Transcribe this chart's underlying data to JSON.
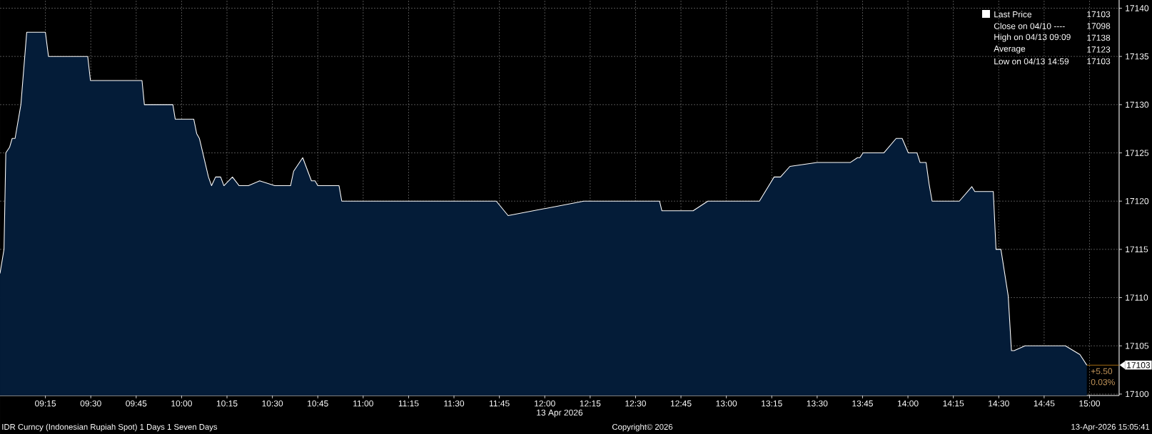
{
  "chart_data": {
    "type": "area",
    "xlabel": "13 Apr 2026",
    "x": [
      9.0,
      9.022,
      9.032,
      9.053,
      9.067,
      9.083,
      9.115,
      9.147,
      9.25,
      9.267,
      9.483,
      9.498,
      9.782,
      9.795,
      9.952,
      9.965,
      10.067,
      10.083,
      10.098,
      10.148,
      10.165,
      10.187,
      10.215,
      10.233,
      10.28,
      10.317,
      10.368,
      10.43,
      10.513,
      10.6,
      10.617,
      10.667,
      10.715,
      10.735,
      10.75,
      10.867,
      10.882,
      11.733,
      11.798,
      12.215,
      12.632,
      12.645,
      12.817,
      12.898,
      13.182,
      13.263,
      13.298,
      13.35,
      13.5,
      13.682,
      13.722,
      13.735,
      13.753,
      13.867,
      13.935,
      13.968,
      14.002,
      14.05,
      14.067,
      14.1,
      14.117,
      14.133,
      14.283,
      14.352,
      14.368,
      14.47,
      14.485,
      14.512,
      14.552,
      14.57,
      14.585,
      14.645,
      14.867,
      14.947,
      14.985
    ],
    "series": [
      {
        "name": "Last Price",
        "color": "#041c38",
        "values": [
          17112.5,
          17115,
          17125,
          17125.6,
          17126.5,
          17126.5,
          17130,
          17137.5,
          17137.5,
          17135,
          17135,
          17132.5,
          17132.5,
          17130,
          17130,
          17128.5,
          17128.5,
          17127,
          17126.5,
          17122.5,
          17121.6,
          17122.5,
          17122.5,
          17121.6,
          17122.5,
          17121.6,
          17121.6,
          17122.1,
          17121.6,
          17121.6,
          17123.1,
          17124.5,
          17122.1,
          17122.1,
          17121.6,
          17121.6,
          17120,
          17120,
          17118.5,
          17120,
          17120,
          17119,
          17119,
          17120,
          17120,
          17122.5,
          17122.5,
          17123.6,
          17124,
          17124,
          17124.5,
          17124.5,
          17125,
          17125,
          17126.5,
          17126.5,
          17125,
          17125,
          17124,
          17124,
          17121.7,
          17120,
          17120,
          17121.5,
          17121,
          17121,
          17115,
          17115,
          17110.2,
          17104.5,
          17104.5,
          17105,
          17105,
          17104.1,
          17103
        ]
      }
    ],
    "xlim": [
      9.0,
      15.163
    ],
    "ylim": [
      17099.85,
      17140.85
    ],
    "xticks": [
      {
        "value": 9.25,
        "label": "09:15"
      },
      {
        "value": 9.5,
        "label": "09:30"
      },
      {
        "value": 9.75,
        "label": "09:45"
      },
      {
        "value": 10.0,
        "label": "10:00"
      },
      {
        "value": 10.25,
        "label": "10:15"
      },
      {
        "value": 10.5,
        "label": "10:30"
      },
      {
        "value": 10.75,
        "label": "10:45"
      },
      {
        "value": 11.0,
        "label": "11:00"
      },
      {
        "value": 11.25,
        "label": "11:15"
      },
      {
        "value": 11.5,
        "label": "11:30"
      },
      {
        "value": 11.75,
        "label": "11:45"
      },
      {
        "value": 12.0,
        "label": "12:00"
      },
      {
        "value": 12.25,
        "label": "12:15"
      },
      {
        "value": 12.5,
        "label": "12:30"
      },
      {
        "value": 12.75,
        "label": "12:45"
      },
      {
        "value": 13.0,
        "label": "13:00"
      },
      {
        "value": 13.25,
        "label": "13:15"
      },
      {
        "value": 13.5,
        "label": "13:30"
      },
      {
        "value": 13.75,
        "label": "13:45"
      },
      {
        "value": 14.0,
        "label": "14:00"
      },
      {
        "value": 14.25,
        "label": "14:15"
      },
      {
        "value": 14.5,
        "label": "14:30"
      },
      {
        "value": 14.75,
        "label": "14:45"
      },
      {
        "value": 15.0,
        "label": "15:00"
      }
    ],
    "yticks": [
      17100,
      17105,
      17110,
      17115,
      17120,
      17125,
      17130,
      17135,
      17140
    ],
    "grid": true,
    "legend": "top right",
    "annotations": [
      "17103",
      "Close on 04/10 ----",
      "17098",
      "High on 04/13 09:09",
      "17138",
      "Average",
      "17123",
      "Low on 04/13 14:59",
      "17103",
      "17103",
      {
        "text": "+5.50",
        "x": 14.985,
        "y": 17103
      },
      {
        "text": "0.03%",
        "x": 14.985,
        "y": 17103
      },
      "IDR Curncy (Indonesian Rupiah Spot) 1 Days 1 Seven Days",
      "Copyright© 2026",
      "13-Apr-2026 15:05:41"
    ]
  }
}
